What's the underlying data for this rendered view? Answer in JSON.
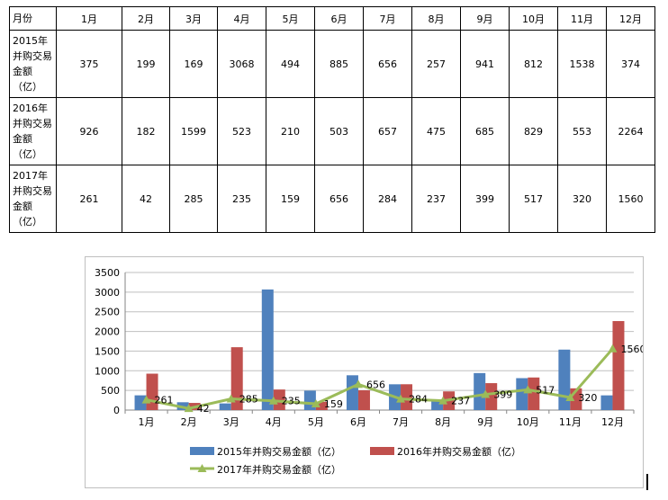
{
  "table": {
    "header": [
      "月份",
      "1月",
      "2月",
      "3月",
      "4月",
      "5月",
      "6月",
      "7月",
      "8月",
      "9月",
      "10月",
      "11月",
      "12月"
    ],
    "rows": [
      {
        "label": "2015年并购交易金额（亿）",
        "values": [
          "375",
          "199",
          "169",
          "3068",
          "494",
          "885",
          "656",
          "257",
          "941",
          "812",
          "1538",
          "374"
        ]
      },
      {
        "label": "2016年并购交易金额（亿）",
        "values": [
          "926",
          "182",
          "1599",
          "523",
          "210",
          "503",
          "657",
          "475",
          "685",
          "829",
          "553",
          "2264"
        ]
      },
      {
        "label": "2017年并购交易金额（亿）",
        "values": [
          "261",
          "42",
          "285",
          "235",
          "159",
          "656",
          "284",
          "237",
          "399",
          "517",
          "320",
          "1560"
        ]
      }
    ]
  },
  "chart_data": {
    "type": "bar",
    "categories": [
      "1月",
      "2月",
      "3月",
      "4月",
      "5月",
      "6月",
      "7月",
      "8月",
      "9月",
      "10月",
      "11月",
      "12月"
    ],
    "series": [
      {
        "name": "2015年并购交易金额（亿）",
        "type": "bar",
        "color": "#4f81bd",
        "values": [
          375,
          199,
          169,
          3068,
          494,
          885,
          656,
          257,
          941,
          812,
          1538,
          374
        ]
      },
      {
        "name": "2016年并购交易金额（亿）",
        "type": "bar",
        "color": "#c0504d",
        "values": [
          926,
          182,
          1599,
          523,
          210,
          503,
          657,
          475,
          685,
          829,
          553,
          2264
        ]
      },
      {
        "name": "2017年并购交易金额（亿）",
        "type": "line",
        "marker": "triangle",
        "color": "#9bbb59",
        "values": [
          261,
          42,
          285,
          235,
          159,
          656,
          284,
          237,
          399,
          517,
          320,
          1560
        ],
        "data_labels": true
      }
    ],
    "ylim": [
      0,
      3500
    ],
    "yticks": [
      0,
      500,
      1000,
      1500,
      2000,
      2500,
      3000,
      3500
    ],
    "grid": true,
    "legend_position": "bottom"
  }
}
